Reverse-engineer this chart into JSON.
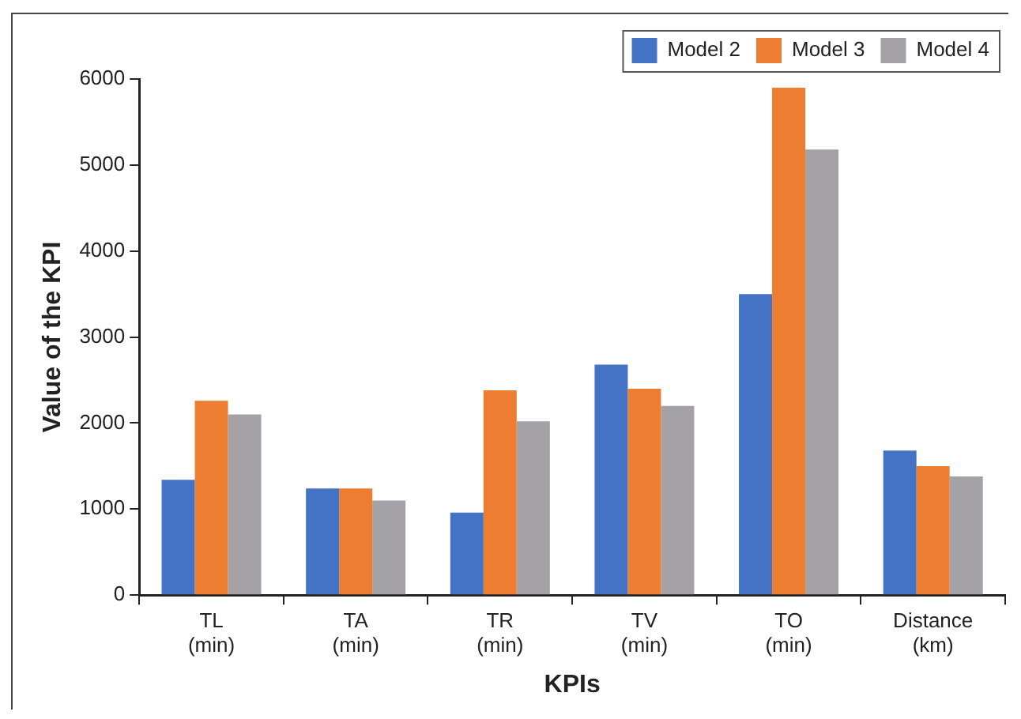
{
  "chart_data": {
    "type": "bar",
    "xlabel": "KPIs",
    "ylabel": "Value of the KPI",
    "categories": [
      "TL (min)",
      "TA (min)",
      "TR (min)",
      "TV (min)",
      "TO (min)",
      "Distance (km)"
    ],
    "series": [
      {
        "name": "Model 2",
        "color": "#4472c4",
        "values": [
          1340,
          1240,
          960,
          2680,
          3500,
          1680
        ]
      },
      {
        "name": "Model 3",
        "color": "#ed7d31",
        "values": [
          2260,
          1240,
          2380,
          2400,
          5900,
          1500
        ]
      },
      {
        "name": "Model 4",
        "color": "#a5a2a7",
        "values": [
          2100,
          1100,
          2020,
          2200,
          5180,
          1380
        ]
      }
    ],
    "ylim": [
      0,
      6000
    ],
    "yticks": [
      0,
      1000,
      2000,
      3000,
      4000,
      5000,
      6000
    ],
    "grid": false,
    "legend": "top right"
  }
}
